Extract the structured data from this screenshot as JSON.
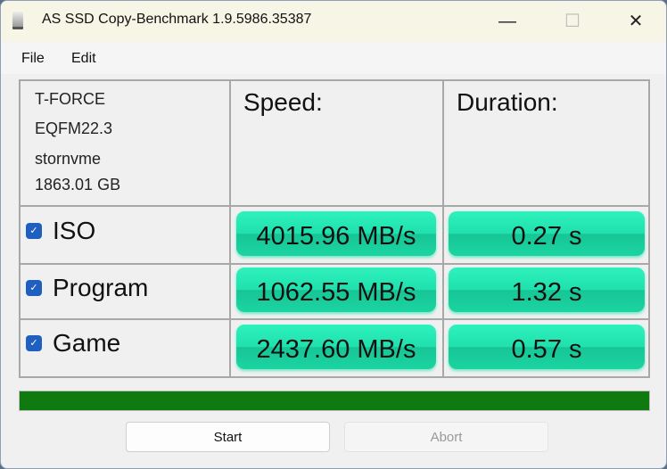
{
  "window": {
    "title": "AS SSD Copy-Benchmark 1.9.5986.35387",
    "minimize": "—",
    "maximize": "☐",
    "close": "✕"
  },
  "menu": [
    "File",
    "Edit"
  ],
  "drive": {
    "model": "T-FORCE",
    "firmware": "EQFM22.3",
    "driver": "stornvme",
    "size": "1863.01 GB"
  },
  "headers": {
    "speed": "Speed:",
    "duration": "Duration:"
  },
  "rows": [
    {
      "label": "ISO",
      "checked": true,
      "speed": "4015.96 MB/s",
      "duration": "0.27 s"
    },
    {
      "label": "Program",
      "checked": true,
      "speed": "1062.55 MB/s",
      "duration": "1.32 s"
    },
    {
      "label": "Game",
      "checked": true,
      "speed": "2437.60 MB/s",
      "duration": "0.57 s"
    }
  ],
  "progress_percent": 100,
  "colors": {
    "result": "#20e0ad",
    "progress": "#0f7a10",
    "checkbox": "#1f5fbf"
  },
  "buttons": {
    "start": "Start",
    "abort": "Abort"
  }
}
